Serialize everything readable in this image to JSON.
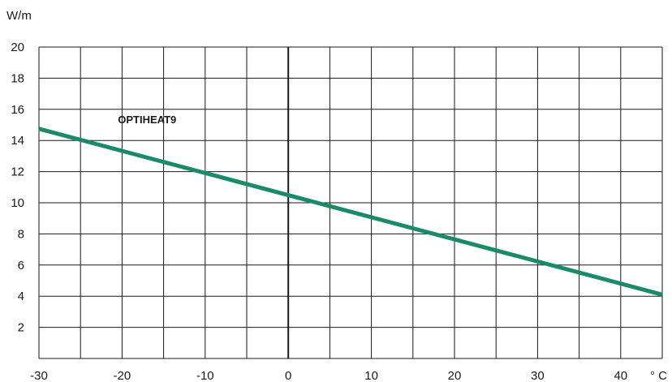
{
  "chart_data": {
    "type": "line",
    "y_unit": "W/m",
    "x_unit": "° C",
    "xlim": [
      -30,
      45
    ],
    "ylim": [
      0,
      20
    ],
    "x_grid_step": 5,
    "y_grid_step": 2,
    "x_ticks": [
      -30,
      -20,
      -10,
      0,
      10,
      20,
      30,
      40
    ],
    "y_ticks": [
      2,
      4,
      6,
      8,
      10,
      12,
      14,
      16,
      18,
      20
    ],
    "grid": true,
    "zero_line": true,
    "series": [
      {
        "name": "OPTIHEAT9",
        "color": "#1a8a6a",
        "x": [
          -30,
          45
        ],
        "y": [
          14.75,
          4.1
        ]
      }
    ]
  }
}
